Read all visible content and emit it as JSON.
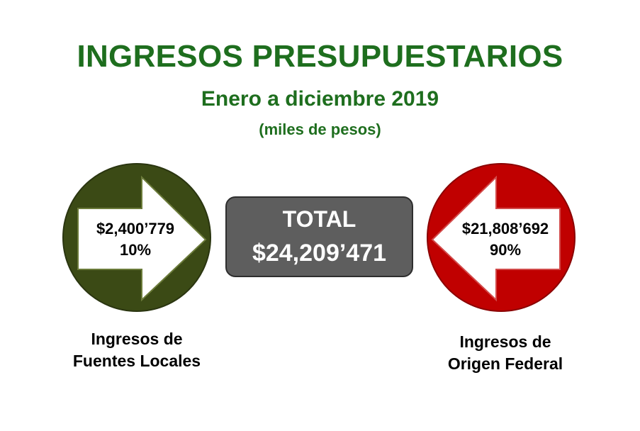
{
  "header": {
    "title": "INGRESOS PRESUPUESTARIOS",
    "subtitle": "Enero a diciembre 2019",
    "units": "(miles de pesos)"
  },
  "total": {
    "label": "TOTAL",
    "value": "$24,209’471"
  },
  "local": {
    "amount": "$2,400’779",
    "percent": "10%",
    "caption_line1": "Ingresos de",
    "caption_line2": "Fuentes Locales",
    "circle_color": "#3b4a15",
    "arrow_direction": "right"
  },
  "federal": {
    "amount": "$21,808’692",
    "percent": "90%",
    "caption_line1": "Ingresos de",
    "caption_line2": "Origen Federal",
    "circle_color": "#c00000",
    "arrow_direction": "left"
  },
  "colors": {
    "heading": "#1e6e1e",
    "total_box": "#5e5e5e"
  }
}
